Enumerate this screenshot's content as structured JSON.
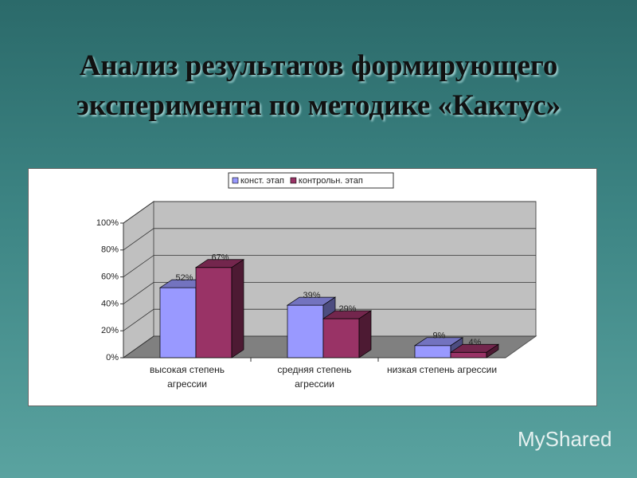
{
  "chart_data": {
    "type": "bar3d",
    "title": "Анализ результатов формирующего эксперимента по методике «Кактус»",
    "watermark": "MyShared",
    "categories": [
      "высокая степень агрессии",
      "средняя степень агрессии",
      "низкая степень агрессии"
    ],
    "series": [
      {
        "name": "конст. этап",
        "color": "#9999ff",
        "values": [
          52,
          39,
          9
        ],
        "value_labels": [
          "52%",
          "39%",
          "9%"
        ]
      },
      {
        "name": "контрольн. этап",
        "color": "#993366",
        "values": [
          67,
          29,
          4
        ],
        "value_labels": [
          "67%",
          "29%",
          "4%"
        ]
      }
    ],
    "ylim": [
      0,
      100
    ],
    "yticks": [
      {
        "value": 0,
        "label": "0%"
      },
      {
        "value": 20,
        "label": "20%"
      },
      {
        "value": 40,
        "label": "40%"
      },
      {
        "value": 60,
        "label": "60%"
      },
      {
        "value": 80,
        "label": "80%"
      },
      {
        "value": 100,
        "label": "100%"
      }
    ],
    "grid": true,
    "legend": "top"
  }
}
